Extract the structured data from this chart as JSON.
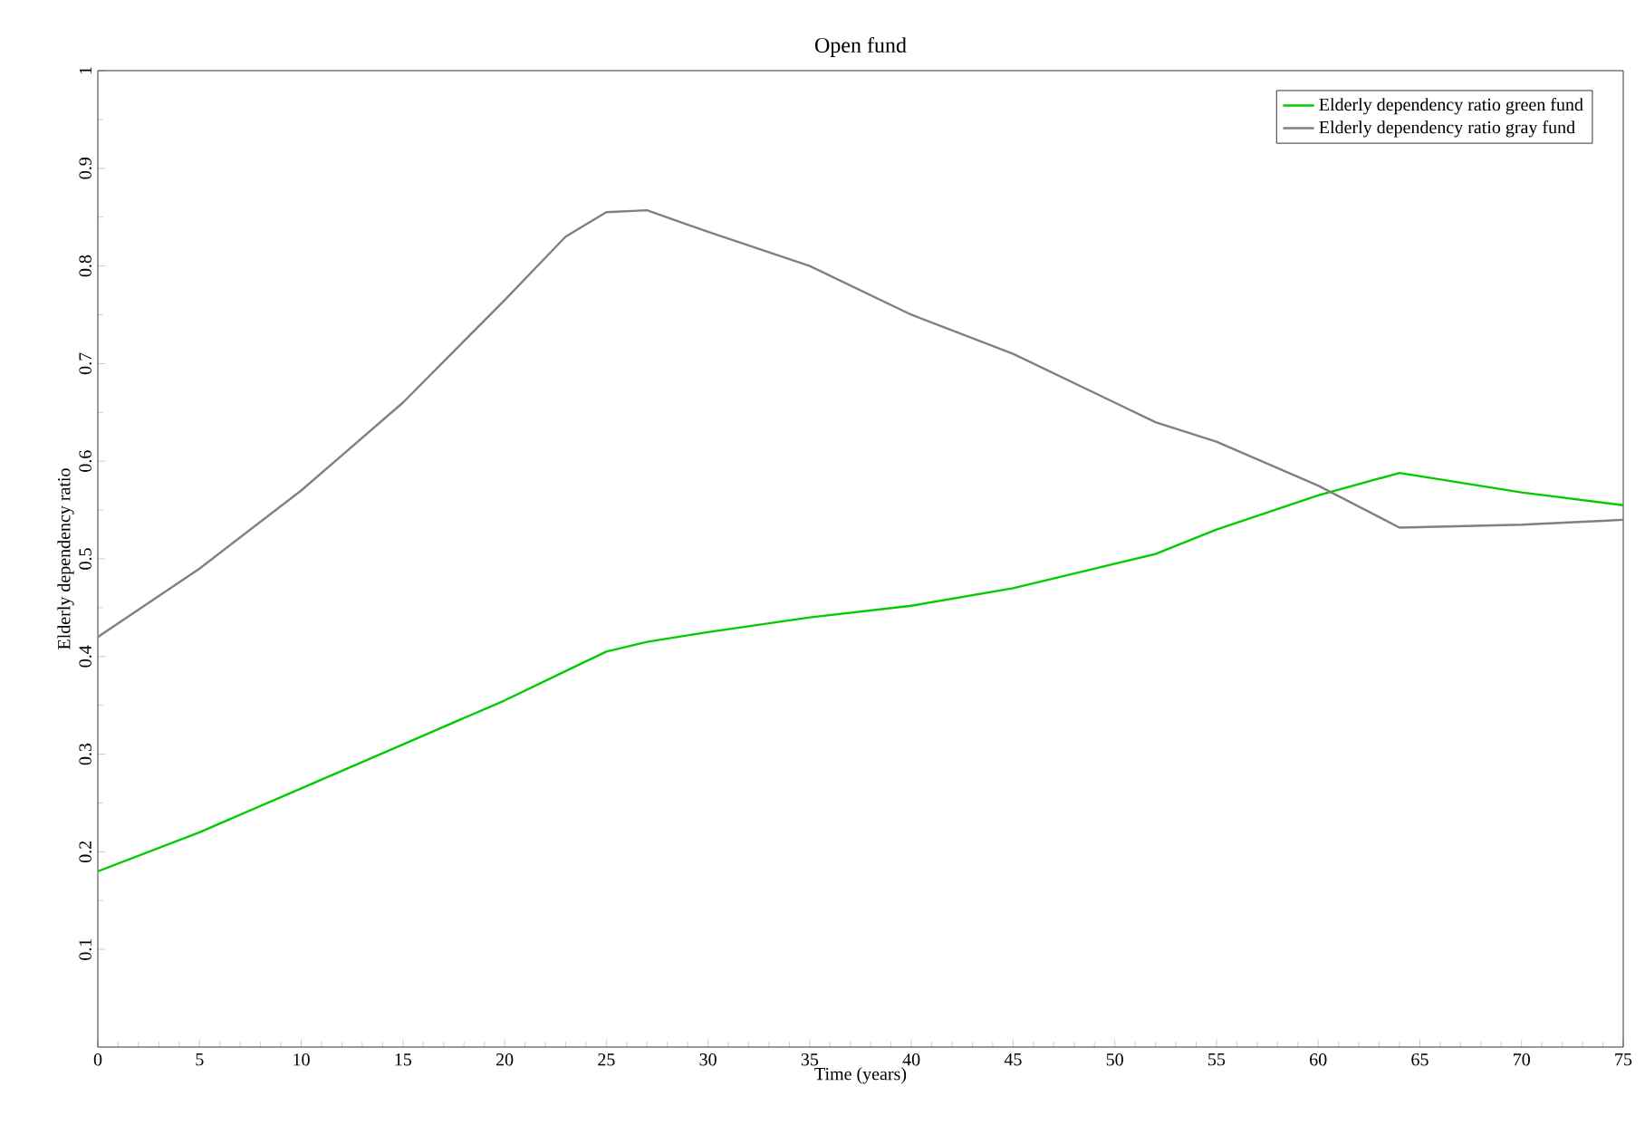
{
  "chart_data": {
    "type": "line",
    "title": "Open fund",
    "xlabel": "Time (years)",
    "ylabel": "Elderly dependency ratio",
    "xlim": [
      0,
      75
    ],
    "xticks": [
      0,
      5,
      10,
      15,
      20,
      25,
      30,
      35,
      40,
      45,
      50,
      55,
      60,
      65,
      70,
      75
    ],
    "ylim": [
      0,
      1
    ],
    "yticks": [
      0.1,
      0.2,
      0.3,
      0.4,
      0.5,
      0.6,
      0.7,
      0.8,
      0.9,
      1
    ],
    "legend": "top right",
    "grid": false,
    "x": [
      0,
      5,
      10,
      15,
      20,
      23,
      25,
      27,
      30,
      35,
      40,
      45,
      50,
      52,
      55,
      60,
      64,
      70,
      75
    ],
    "series": [
      {
        "name": "Elderly dependency ratio green fund",
        "color": "#00cc00",
        "values": [
          0.18,
          0.22,
          0.265,
          0.31,
          0.355,
          0.385,
          0.405,
          0.415,
          0.425,
          0.44,
          0.452,
          0.47,
          0.495,
          0.505,
          0.53,
          0.565,
          0.588,
          0.568,
          0.555
        ]
      },
      {
        "name": "Elderly dependency ratio gray fund",
        "color": "#808080",
        "values": [
          0.42,
          0.49,
          0.57,
          0.66,
          0.765,
          0.83,
          0.855,
          0.857,
          0.835,
          0.8,
          0.75,
          0.71,
          0.66,
          0.64,
          0.62,
          0.575,
          0.532,
          0.535,
          0.54
        ]
      }
    ]
  }
}
